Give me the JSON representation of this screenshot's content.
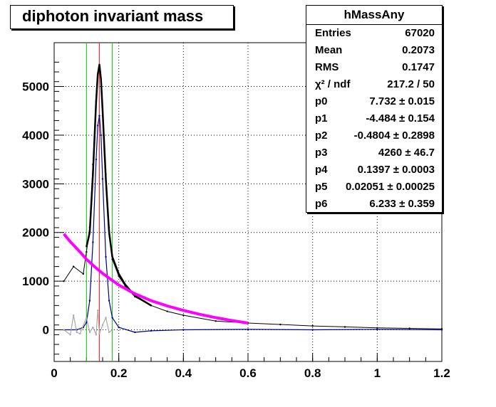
{
  "title": "diphoton invariant mass",
  "stats": {
    "name": "hMassAny",
    "entries": [
      {
        "label": "Entries",
        "value": "67020"
      },
      {
        "label": "Mean",
        "value": "0.2073"
      },
      {
        "label": "RMS",
        "value": "0.1747"
      },
      {
        "label": "χ² / ndf",
        "value": "217.2 / 50"
      },
      {
        "label": "p0",
        "value": "7.732 ± 0.015"
      },
      {
        "label": "p1",
        "value": "-4.484 ± 0.154"
      },
      {
        "label": "p2",
        "value": "-0.4804 ± 0.2898"
      },
      {
        "label": "p3",
        "value": "4260 ± 46.7"
      },
      {
        "label": "p4",
        "value": "0.1397 ± 0.0003"
      },
      {
        "label": "p5",
        "value": "0.02051 ± 0.00025"
      },
      {
        "label": "p6",
        "value": "6.233 ± 0.359"
      }
    ]
  },
  "chart_data": {
    "type": "line",
    "title": "diphoton invariant mass",
    "xlim": [
      0,
      1.2
    ],
    "ylim": [
      -650,
      5900
    ],
    "xticks": [
      0,
      0.2,
      0.4,
      0.6,
      0.8,
      1,
      1.2
    ],
    "xtick_labels": [
      "0",
      "0.2",
      "0.4",
      "0.6",
      "0.8",
      "1",
      "1.2"
    ],
    "yticks": [
      0,
      1000,
      2000,
      3000,
      4000,
      5000
    ],
    "ytick_labels": [
      "0",
      "1000",
      "2000",
      "3000",
      "4000",
      "5000"
    ],
    "grid": true,
    "colors": {
      "data": "#000000",
      "fit": "#000000",
      "signal": "#00008b",
      "background_fit": "#ff00ff",
      "sideband": "#a9a9a9",
      "window": "#00cc00",
      "peak": "#ff0000"
    },
    "vertical_lines": [
      {
        "x": 0.1,
        "color": "#00cc00"
      },
      {
        "x": 0.18,
        "color": "#00cc00"
      },
      {
        "x": 0.1397,
        "color": "#ff0000"
      }
    ],
    "series": [
      {
        "role": "histogram",
        "color": "#000000",
        "x": [
          0.03,
          0.06,
          0.09,
          0.1,
          0.11,
          0.12,
          0.13,
          0.135,
          0.14,
          0.145,
          0.15,
          0.16,
          0.17,
          0.18,
          0.2,
          0.22,
          0.25,
          0.3,
          0.35,
          0.4,
          0.5,
          0.6,
          0.7,
          0.8,
          0.9,
          1.0,
          1.1,
          1.2
        ],
        "values": [
          1000,
          1300,
          1150,
          1600,
          2100,
          3400,
          4700,
          5250,
          5400,
          5100,
          4400,
          3200,
          2100,
          1450,
          1100,
          900,
          680,
          500,
          380,
          300,
          180,
          140,
          110,
          80,
          60,
          40,
          30,
          20
        ]
      },
      {
        "role": "fit",
        "color": "#000000",
        "x": [
          0.1,
          0.11,
          0.12,
          0.13,
          0.135,
          0.14,
          0.145,
          0.15,
          0.16,
          0.17,
          0.18,
          0.2,
          0.22,
          0.25,
          0.3
        ],
        "values": [
          1700,
          2000,
          3200,
          4700,
          5250,
          5450,
          5150,
          4500,
          3100,
          2000,
          1500,
          1150,
          930,
          700,
          500
        ]
      },
      {
        "role": "signal",
        "color": "#00008b",
        "x": [
          0.03,
          0.07,
          0.09,
          0.1,
          0.11,
          0.12,
          0.13,
          0.135,
          0.14,
          0.145,
          0.15,
          0.16,
          0.17,
          0.18,
          0.2,
          0.25,
          0.3,
          0.4,
          0.6,
          0.8,
          1.0,
          1.2
        ],
        "values": [
          0,
          0,
          50,
          150,
          600,
          1800,
          3500,
          4200,
          4400,
          4000,
          3100,
          1500,
          600,
          250,
          50,
          -50,
          -20,
          0,
          10,
          0,
          10,
          0
        ]
      },
      {
        "role": "background_fit",
        "color": "#ff00ff",
        "x": [
          0.03,
          0.05,
          0.08,
          0.1,
          0.13,
          0.15,
          0.2,
          0.25,
          0.3,
          0.35,
          0.4,
          0.45,
          0.5,
          0.55,
          0.6
        ],
        "values": [
          1970,
          1810,
          1600,
          1450,
          1270,
          1160,
          920,
          740,
          600,
          490,
          400,
          320,
          250,
          190,
          140
        ]
      },
      {
        "role": "sideband",
        "color": "#a9a9a9",
        "x": [
          0.03,
          0.05,
          0.06,
          0.07,
          0.08,
          0.1,
          0.11,
          0.12,
          0.13,
          0.135,
          0.14,
          0.15,
          0.16,
          0.17,
          0.18
        ],
        "values": [
          0,
          -100,
          300,
          -50,
          -80,
          250,
          -50,
          50,
          -100,
          400,
          -80,
          100,
          250,
          -50,
          0
        ]
      }
    ]
  }
}
